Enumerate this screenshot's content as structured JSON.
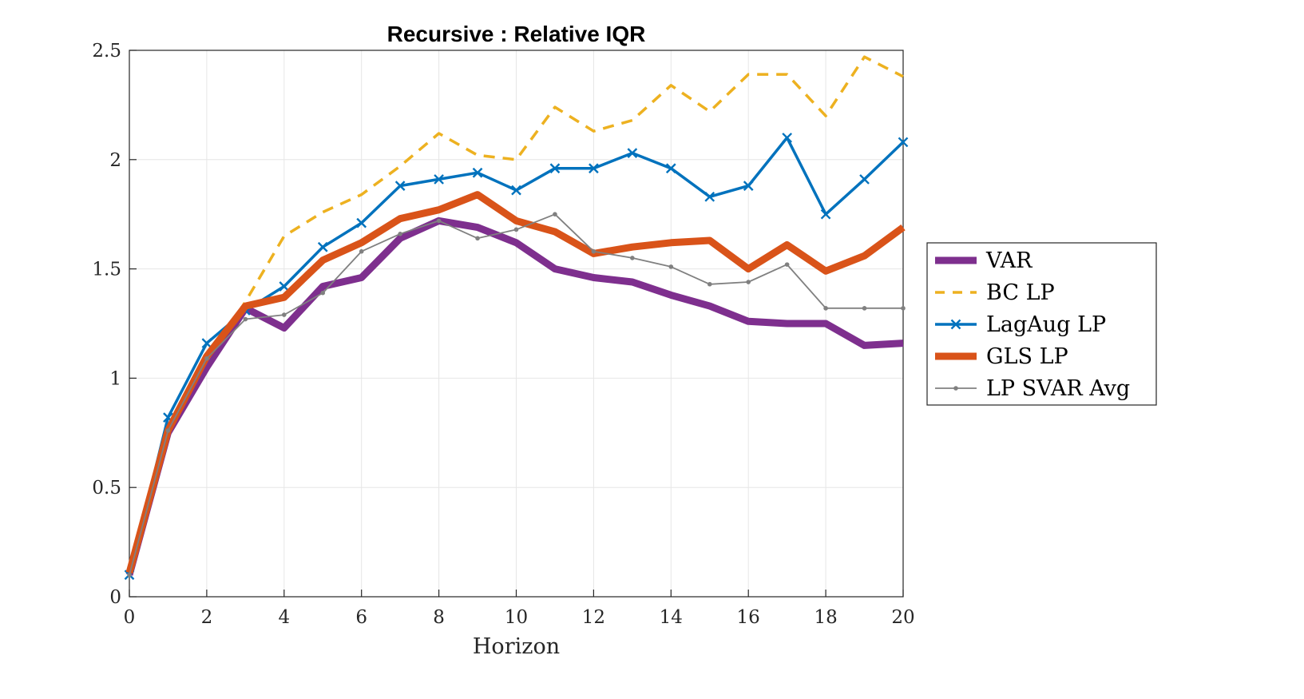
{
  "chart_data": {
    "type": "line",
    "title": "Recursive : Relative IQR",
    "xlabel": "Horizon",
    "ylabel": "",
    "xlim": [
      0,
      20
    ],
    "ylim": [
      0,
      2.5
    ],
    "xticks": [
      0,
      2,
      4,
      6,
      8,
      10,
      12,
      14,
      16,
      18,
      20
    ],
    "yticks": [
      0,
      0.5,
      1,
      1.5,
      2,
      2.5
    ],
    "xtick_labels": [
      "0",
      "2",
      "4",
      "6",
      "8",
      "10",
      "12",
      "14",
      "16",
      "18",
      "20"
    ],
    "ytick_labels": [
      "0",
      "0.5",
      "1",
      "1.5",
      "2",
      "2.5"
    ],
    "grid": true,
    "legend_position": "outside right",
    "x": [
      0,
      1,
      2,
      3,
      4,
      5,
      6,
      7,
      8,
      9,
      10,
      11,
      12,
      13,
      14,
      15,
      16,
      17,
      18,
      19,
      20
    ],
    "series": [
      {
        "name": "VAR",
        "color": "#7E2F8E",
        "style": "solid-thick",
        "values": [
          0.1,
          0.75,
          1.05,
          1.32,
          1.23,
          1.42,
          1.46,
          1.64,
          1.72,
          1.69,
          1.62,
          1.5,
          1.46,
          1.44,
          1.38,
          1.33,
          1.26,
          1.25,
          1.25,
          1.15,
          1.16
        ]
      },
      {
        "name": "BC LP",
        "color": "#EDB120",
        "style": "dashed",
        "values": [
          0.1,
          0.77,
          1.08,
          1.35,
          1.65,
          1.76,
          1.84,
          1.97,
          2.12,
          2.02,
          2.0,
          2.24,
          2.13,
          2.18,
          2.34,
          2.22,
          2.39,
          2.39,
          2.2,
          2.47,
          2.38
        ]
      },
      {
        "name": "LagAug LP",
        "color": "#0072BD",
        "style": "solid-x",
        "values": [
          0.1,
          0.82,
          1.16,
          1.31,
          1.42,
          1.6,
          1.71,
          1.88,
          1.91,
          1.94,
          1.86,
          1.96,
          1.96,
          2.03,
          1.96,
          1.83,
          1.88,
          2.1,
          1.75,
          1.91,
          2.08
        ]
      },
      {
        "name": "GLS LP",
        "color": "#D95319",
        "style": "solid-thick",
        "values": [
          0.11,
          0.76,
          1.1,
          1.33,
          1.37,
          1.54,
          1.62,
          1.73,
          1.77,
          1.84,
          1.72,
          1.67,
          1.57,
          1.6,
          1.62,
          1.63,
          1.5,
          1.61,
          1.49,
          1.56,
          1.69
        ]
      },
      {
        "name": "LP SVAR Avg",
        "color": "#808080",
        "style": "solid-dot",
        "values": [
          0.1,
          0.76,
          1.09,
          1.27,
          1.29,
          1.39,
          1.58,
          1.66,
          1.72,
          1.64,
          1.68,
          1.75,
          1.58,
          1.55,
          1.51,
          1.43,
          1.44,
          1.52,
          1.32,
          1.32,
          1.32
        ]
      }
    ]
  }
}
